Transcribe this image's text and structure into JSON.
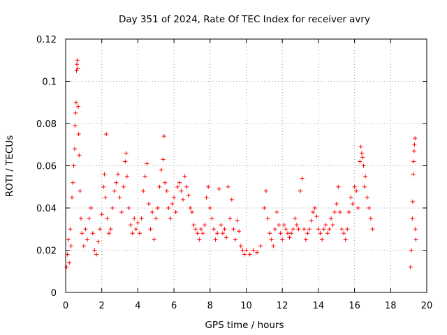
{
  "chart_data": {
    "type": "scatter",
    "title": "Day 351 of 2024, Rate Of TEC Index for receiver avry",
    "xlabel": "GPS time / hours",
    "ylabel": "ROTI / TECUs",
    "xlim": [
      0,
      20
    ],
    "ylim": [
      0,
      0.12
    ],
    "x_ticks": [
      0,
      2,
      4,
      6,
      8,
      10,
      12,
      14,
      16,
      18,
      20
    ],
    "y_ticks": [
      0,
      0.02,
      0.04,
      0.06,
      0.08,
      0.1,
      0.12
    ],
    "x_tick_labels": [
      "0",
      "2",
      "4",
      "6",
      "8",
      "10",
      "12",
      "14",
      "16",
      "18",
      "20"
    ],
    "y_tick_labels": [
      "0",
      "0.02",
      "0.04",
      "0.06",
      "0.08",
      "0.1",
      "0.12"
    ],
    "grid": true,
    "marker": "+",
    "color": "#ff0000",
    "series": [
      {
        "name": "ROTI",
        "points": [
          [
            0.05,
            0.012
          ],
          [
            0.1,
            0.018
          ],
          [
            0.15,
            0.025
          ],
          [
            0.2,
            0.014
          ],
          [
            0.25,
            0.03
          ],
          [
            0.3,
            0.022
          ],
          [
            0.35,
            0.045
          ],
          [
            0.4,
            0.052
          ],
          [
            0.45,
            0.06
          ],
          [
            0.5,
            0.068
          ],
          [
            0.52,
            0.079
          ],
          [
            0.55,
            0.085
          ],
          [
            0.58,
            0.09
          ],
          [
            0.6,
            0.105
          ],
          [
            0.62,
            0.108
          ],
          [
            0.65,
            0.11
          ],
          [
            0.68,
            0.106
          ],
          [
            0.7,
            0.088
          ],
          [
            0.72,
            0.075
          ],
          [
            0.75,
            0.065
          ],
          [
            0.8,
            0.048
          ],
          [
            0.85,
            0.035
          ],
          [
            0.9,
            0.028
          ],
          [
            1.0,
            0.022
          ],
          [
            1.1,
            0.03
          ],
          [
            1.2,
            0.025
          ],
          [
            1.3,
            0.035
          ],
          [
            1.4,
            0.04
          ],
          [
            1.5,
            0.028
          ],
          [
            1.6,
            0.02
          ],
          [
            1.7,
            0.018
          ],
          [
            1.8,
            0.024
          ],
          [
            1.9,
            0.03
          ],
          [
            2.0,
            0.037
          ],
          [
            2.1,
            0.05
          ],
          [
            2.15,
            0.056
          ],
          [
            2.2,
            0.045
          ],
          [
            2.25,
            0.075
          ],
          [
            2.3,
            0.035
          ],
          [
            2.4,
            0.028
          ],
          [
            2.5,
            0.03
          ],
          [
            2.6,
            0.04
          ],
          [
            2.7,
            0.048
          ],
          [
            2.8,
            0.052
          ],
          [
            2.9,
            0.056
          ],
          [
            3.0,
            0.045
          ],
          [
            3.1,
            0.038
          ],
          [
            3.2,
            0.05
          ],
          [
            3.3,
            0.062
          ],
          [
            3.35,
            0.066
          ],
          [
            3.4,
            0.055
          ],
          [
            3.5,
            0.04
          ],
          [
            3.6,
            0.032
          ],
          [
            3.7,
            0.028
          ],
          [
            3.8,
            0.035
          ],
          [
            3.9,
            0.03
          ],
          [
            4.0,
            0.033
          ],
          [
            4.1,
            0.028
          ],
          [
            4.2,
            0.035
          ],
          [
            4.3,
            0.048
          ],
          [
            4.4,
            0.055
          ],
          [
            4.5,
            0.061
          ],
          [
            4.6,
            0.042
          ],
          [
            4.7,
            0.03
          ],
          [
            4.8,
            0.038
          ],
          [
            4.9,
            0.025
          ],
          [
            5.0,
            0.035
          ],
          [
            5.1,
            0.04
          ],
          [
            5.2,
            0.05
          ],
          [
            5.3,
            0.058
          ],
          [
            5.4,
            0.063
          ],
          [
            5.45,
            0.074
          ],
          [
            5.5,
            0.052
          ],
          [
            5.6,
            0.048
          ],
          [
            5.7,
            0.04
          ],
          [
            5.8,
            0.035
          ],
          [
            5.9,
            0.042
          ],
          [
            6.0,
            0.045
          ],
          [
            6.1,
            0.038
          ],
          [
            6.2,
            0.05
          ],
          [
            6.3,
            0.052
          ],
          [
            6.4,
            0.048
          ],
          [
            6.5,
            0.044
          ],
          [
            6.6,
            0.055
          ],
          [
            6.7,
            0.05
          ],
          [
            6.8,
            0.046
          ],
          [
            6.9,
            0.04
          ],
          [
            7.0,
            0.038
          ],
          [
            7.1,
            0.032
          ],
          [
            7.2,
            0.03
          ],
          [
            7.3,
            0.028
          ],
          [
            7.4,
            0.025
          ],
          [
            7.5,
            0.03
          ],
          [
            7.6,
            0.028
          ],
          [
            7.7,
            0.032
          ],
          [
            7.8,
            0.045
          ],
          [
            7.9,
            0.05
          ],
          [
            8.0,
            0.04
          ],
          [
            8.1,
            0.035
          ],
          [
            8.2,
            0.03
          ],
          [
            8.3,
            0.025
          ],
          [
            8.4,
            0.028
          ],
          [
            8.5,
            0.049
          ],
          [
            8.6,
            0.032
          ],
          [
            8.7,
            0.028
          ],
          [
            8.8,
            0.03
          ],
          [
            8.9,
            0.026
          ],
          [
            9.0,
            0.05
          ],
          [
            9.1,
            0.035
          ],
          [
            9.2,
            0.044
          ],
          [
            9.3,
            0.03
          ],
          [
            9.4,
            0.025
          ],
          [
            9.5,
            0.034
          ],
          [
            9.6,
            0.029
          ],
          [
            9.7,
            0.022
          ],
          [
            9.8,
            0.02
          ],
          [
            9.9,
            0.018
          ],
          [
            10.0,
            0.02
          ],
          [
            10.2,
            0.018
          ],
          [
            10.4,
            0.02
          ],
          [
            10.6,
            0.019
          ],
          [
            10.8,
            0.022
          ],
          [
            11.0,
            0.04
          ],
          [
            11.1,
            0.048
          ],
          [
            11.2,
            0.035
          ],
          [
            11.3,
            0.028
          ],
          [
            11.4,
            0.025
          ],
          [
            11.5,
            0.022
          ],
          [
            11.6,
            0.03
          ],
          [
            11.7,
            0.038
          ],
          [
            11.8,
            0.032
          ],
          [
            11.9,
            0.028
          ],
          [
            12.0,
            0.025
          ],
          [
            12.1,
            0.032
          ],
          [
            12.2,
            0.03
          ],
          [
            12.3,
            0.028
          ],
          [
            12.4,
            0.026
          ],
          [
            12.5,
            0.028
          ],
          [
            12.6,
            0.03
          ],
          [
            12.7,
            0.035
          ],
          [
            12.8,
            0.032
          ],
          [
            12.9,
            0.03
          ],
          [
            13.0,
            0.048
          ],
          [
            13.1,
            0.054
          ],
          [
            13.2,
            0.03
          ],
          [
            13.3,
            0.025
          ],
          [
            13.4,
            0.028
          ],
          [
            13.5,
            0.03
          ],
          [
            13.6,
            0.034
          ],
          [
            13.7,
            0.038
          ],
          [
            13.8,
            0.04
          ],
          [
            13.9,
            0.036
          ],
          [
            14.0,
            0.03
          ],
          [
            14.1,
            0.028
          ],
          [
            14.2,
            0.025
          ],
          [
            14.3,
            0.03
          ],
          [
            14.4,
            0.032
          ],
          [
            14.5,
            0.028
          ],
          [
            14.6,
            0.03
          ],
          [
            14.7,
            0.035
          ],
          [
            14.8,
            0.032
          ],
          [
            14.9,
            0.038
          ],
          [
            15.0,
            0.042
          ],
          [
            15.1,
            0.05
          ],
          [
            15.2,
            0.038
          ],
          [
            15.3,
            0.03
          ],
          [
            15.4,
            0.028
          ],
          [
            15.5,
            0.025
          ],
          [
            15.6,
            0.03
          ],
          [
            15.7,
            0.038
          ],
          [
            15.8,
            0.045
          ],
          [
            15.9,
            0.042
          ],
          [
            16.0,
            0.05
          ],
          [
            16.1,
            0.048
          ],
          [
            16.2,
            0.04
          ],
          [
            16.3,
            0.062
          ],
          [
            16.35,
            0.069
          ],
          [
            16.4,
            0.066
          ],
          [
            16.45,
            0.064
          ],
          [
            16.5,
            0.06
          ],
          [
            16.55,
            0.05
          ],
          [
            16.6,
            0.055
          ],
          [
            16.7,
            0.045
          ],
          [
            16.8,
            0.04
          ],
          [
            16.9,
            0.035
          ],
          [
            17.0,
            0.03
          ],
          [
            19.1,
            0.012
          ],
          [
            19.15,
            0.02
          ],
          [
            19.2,
            0.035
          ],
          [
            19.22,
            0.043
          ],
          [
            19.25,
            0.056
          ],
          [
            19.27,
            0.062
          ],
          [
            19.3,
            0.067
          ],
          [
            19.32,
            0.07
          ],
          [
            19.35,
            0.073
          ],
          [
            19.37,
            0.03
          ],
          [
            19.4,
            0.025
          ]
        ]
      }
    ]
  }
}
